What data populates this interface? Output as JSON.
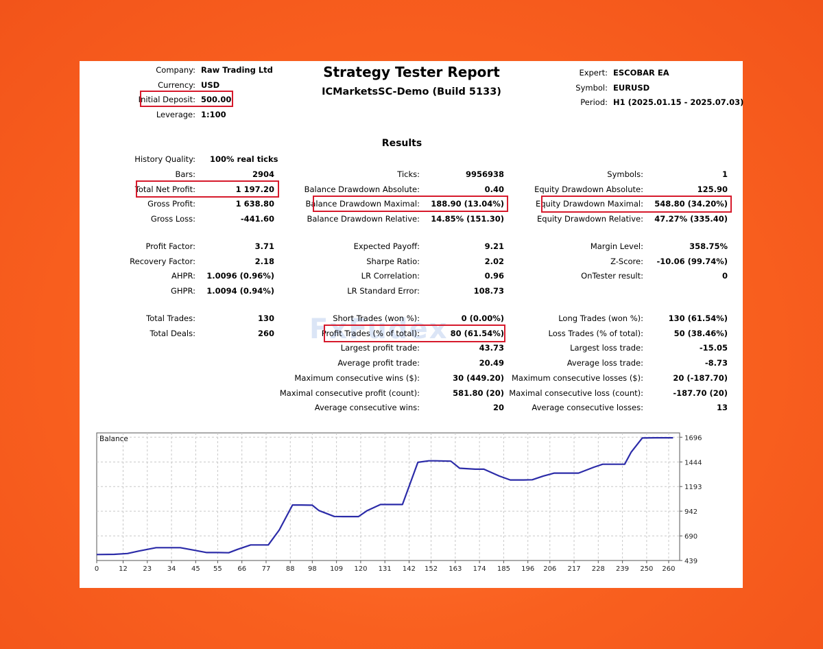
{
  "header": {
    "left": [
      {
        "label": "Company:",
        "value": "Raw Trading Ltd"
      },
      {
        "label": "Currency:",
        "value": "USD"
      },
      {
        "label": "Initial Deposit:",
        "value": "500.00"
      },
      {
        "label": "Leverage:",
        "value": "1:100"
      }
    ],
    "title": "Strategy Tester Report",
    "subtitle": "ICMarketsSC-Demo (Build 5133)",
    "right": [
      {
        "label": "Expert:",
        "value": "ESCOBAR EA"
      },
      {
        "label": "Symbol:",
        "value": "EURUSD"
      },
      {
        "label": "Period:",
        "value": "H1 (2025.01.15 - 2025.07.03)"
      }
    ]
  },
  "results": {
    "title": "Results",
    "col1": [
      {
        "label": "History Quality:",
        "value": "100% real ticks",
        "y": 0
      },
      {
        "label": "Bars:",
        "value": "2904",
        "y": 1
      },
      {
        "label": "Total Net Profit:",
        "value": "1 197.20",
        "y": 2
      },
      {
        "label": "Gross Profit:",
        "value": "1 638.80",
        "y": 3
      },
      {
        "label": "Gross Loss:",
        "value": "-441.60",
        "y": 4
      },
      {
        "label": "Profit Factor:",
        "value": "3.71",
        "y": 5
      },
      {
        "label": "Recovery Factor:",
        "value": "2.18",
        "y": 6
      },
      {
        "label": "AHPR:",
        "value": "1.0096 (0.96%)",
        "y": 7
      },
      {
        "label": "GHPR:",
        "value": "1.0094 (0.94%)",
        "y": 8
      },
      {
        "label": "Total Trades:",
        "value": "130",
        "y": 9
      },
      {
        "label": "Total Deals:",
        "value": "260",
        "y": 10
      }
    ],
    "col2": [
      {
        "label": "Ticks:",
        "value": "9956938"
      },
      {
        "label": "Balance Drawdown Absolute:",
        "value": "0.40"
      },
      {
        "label": "Balance Drawdown Maximal:",
        "value": "188.90 (13.04%)"
      },
      {
        "label": "Balance Drawdown Relative:",
        "value": "14.85% (151.30)"
      },
      {
        "label": "Expected Payoff:",
        "value": "9.21"
      },
      {
        "label": "Sharpe Ratio:",
        "value": "2.02"
      },
      {
        "label": "LR Correlation:",
        "value": "0.96"
      },
      {
        "label": "LR Standard Error:",
        "value": "108.73"
      },
      {
        "label": "Short Trades (won %):",
        "value": "0 (0.00%)"
      },
      {
        "label": "Profit Trades (% of total):",
        "value": "80 (61.54%)"
      },
      {
        "label": "Largest profit trade:",
        "value": "43.73"
      },
      {
        "label": "Average profit trade:",
        "value": "20.49"
      },
      {
        "label": "Maximum consecutive wins ($):",
        "value": "30 (449.20)"
      },
      {
        "label": "Maximal consecutive profit (count):",
        "value": "581.80 (20)"
      },
      {
        "label": "Average consecutive wins:",
        "value": "20"
      }
    ],
    "col3": [
      {
        "label": "Symbols:",
        "value": "1"
      },
      {
        "label": "Equity Drawdown Absolute:",
        "value": "125.90"
      },
      {
        "label": "Equity Drawdown Maximal:",
        "value": "548.80 (34.20%)"
      },
      {
        "label": "Equity Drawdown Relative:",
        "value": "47.27% (335.40)"
      },
      {
        "label": "Margin Level:",
        "value": "358.75%"
      },
      {
        "label": "Z-Score:",
        "value": "-10.06 (99.74%)"
      },
      {
        "label": "OnTester result:",
        "value": "0"
      },
      {
        "label": "Long Trades (won %):",
        "value": "130 (61.54%)"
      },
      {
        "label": "Loss Trades (% of total):",
        "value": "50 (38.46%)"
      },
      {
        "label": "Largest loss trade:",
        "value": "-15.05"
      },
      {
        "label": "Average loss trade:",
        "value": "-8.73"
      },
      {
        "label": "Maximum consecutive losses ($):",
        "value": "20 (-187.70)"
      },
      {
        "label": "Maximal consecutive loss (count):",
        "value": "-187.70 (20)"
      },
      {
        "label": "Average consecutive losses:",
        "value": "13"
      }
    ]
  },
  "watermark": "FxFudex",
  "highlight_color": "#d6192b",
  "chart_data": {
    "type": "line",
    "title": "Balance",
    "line_color": "#2b2ba8",
    "x_ticks": [
      0,
      12,
      23,
      34,
      45,
      55,
      66,
      77,
      88,
      98,
      109,
      120,
      131,
      142,
      152,
      163,
      174,
      185,
      196,
      206,
      217,
      228,
      239,
      250,
      260
    ],
    "y_ticks": [
      439,
      690,
      942,
      1193,
      1444,
      1696
    ],
    "xlim": [
      0,
      265
    ],
    "ylim": [
      439,
      1740
    ],
    "x": [
      0,
      8,
      14,
      19,
      27,
      31,
      38,
      44,
      50,
      55,
      60,
      64,
      70,
      73,
      78,
      83,
      89,
      93,
      98,
      101,
      108,
      112,
      119,
      123,
      129,
      135,
      139,
      146,
      151,
      154,
      161,
      165,
      172,
      176,
      183,
      188,
      194,
      198,
      203,
      208,
      215,
      219,
      226,
      230,
      235,
      240,
      243,
      248,
      254,
      262
    ],
    "y": [
      500,
      502,
      510,
      535,
      570,
      570,
      570,
      545,
      520,
      520,
      518,
      552,
      598,
      598,
      598,
      750,
      1005,
      1005,
      1003,
      948,
      888,
      887,
      887,
      948,
      1010,
      1010,
      1010,
      1440,
      1455,
      1455,
      1452,
      1380,
      1370,
      1370,
      1300,
      1260,
      1260,
      1262,
      1300,
      1330,
      1330,
      1330,
      1390,
      1420,
      1420,
      1420,
      1545,
      1688,
      1690,
      1690
    ]
  }
}
